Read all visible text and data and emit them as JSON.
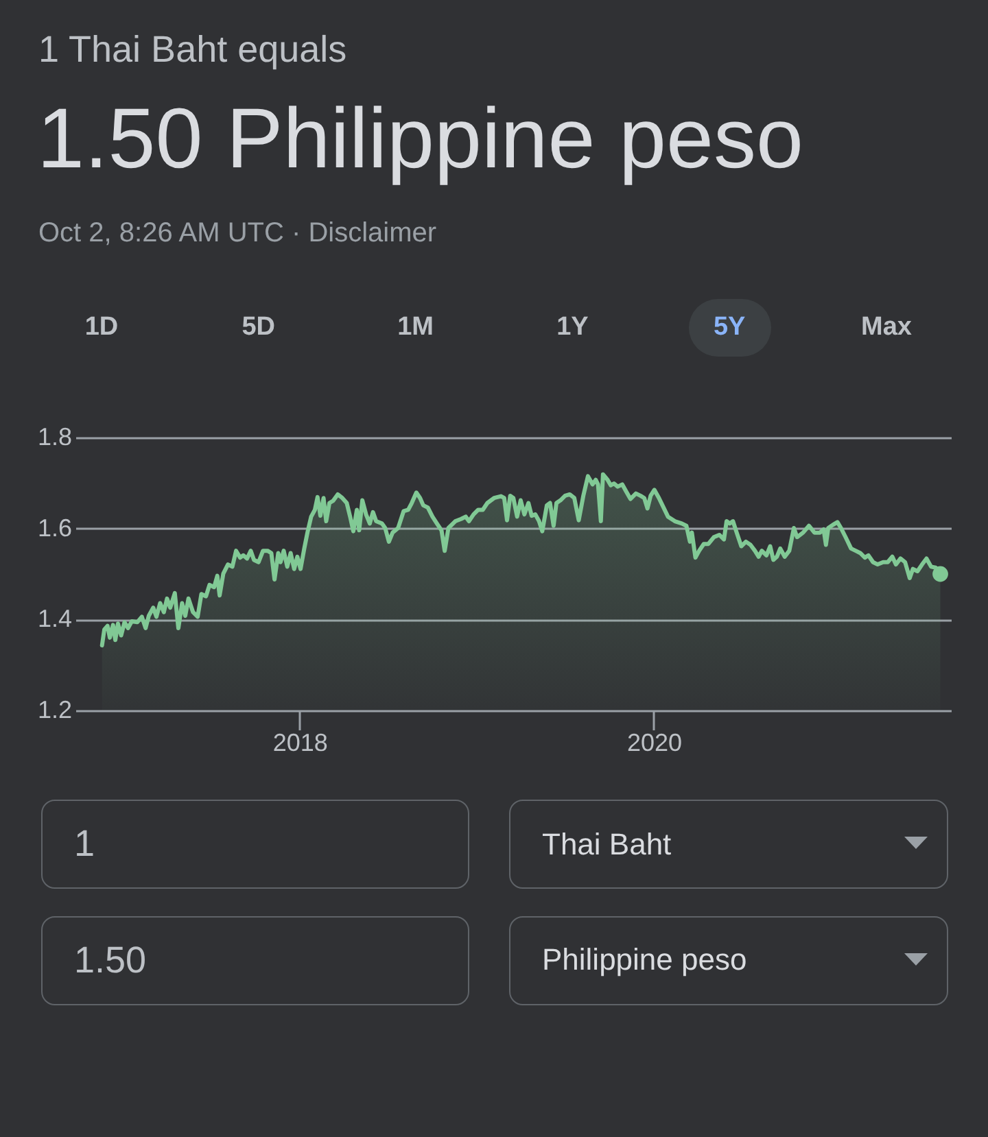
{
  "chart_data": {
    "type": "area",
    "title": "1.50 Philippine peso",
    "subtitle": "1 Thai Baht equals",
    "annotations": [
      "Oct 2, 8:26 AM UTC · Disclaimer",
      "1D",
      "5D",
      "1M",
      "1Y",
      "5Y",
      "Max",
      "1",
      "Thai Baht",
      "1.50",
      "Philippine peso"
    ],
    "x": [
      2016.884,
      2016.897,
      2016.915,
      2016.928,
      2016.946,
      2016.959,
      2016.974,
      2016.992,
      2017.011,
      2017.031,
      2017.052,
      2017.083,
      2017.109,
      2017.13,
      2017.148,
      2017.173,
      2017.191,
      2017.212,
      2017.233,
      2017.251,
      2017.269,
      2017.295,
      2017.315,
      2017.336,
      2017.354,
      2017.372,
      2017.398,
      2017.424,
      2017.445,
      2017.471,
      2017.491,
      2017.517,
      2017.535,
      2017.548,
      2017.569,
      2017.595,
      2017.62,
      2017.641,
      2017.664,
      2017.682,
      2017.703,
      2017.724,
      2017.742,
      2017.768,
      2017.793,
      2017.819,
      2017.84,
      2017.858,
      2017.879,
      2017.892,
      2017.91,
      2017.93,
      2017.949,
      2017.969,
      2017.987,
      2018.005,
      2018.026,
      2018.044,
      2018.065,
      2018.086,
      2018.101,
      2018.117,
      2018.135,
      2018.15,
      2018.168,
      2018.189,
      2018.215,
      2018.241,
      2018.266,
      2018.285,
      2018.303,
      2018.323,
      2018.336,
      2018.354,
      2018.375,
      2018.396,
      2018.414,
      2018.432,
      2018.465,
      2018.483,
      2018.504,
      2018.525,
      2018.556,
      2018.587,
      2018.613,
      2018.633,
      2018.659,
      2018.68,
      2018.698,
      2018.724,
      2018.75,
      2018.775,
      2018.801,
      2018.819,
      2018.84,
      2018.879,
      2018.912,
      2018.938,
      2018.956,
      2018.982,
      2019.008,
      2019.034,
      2019.06,
      2019.098,
      2019.137,
      2019.155,
      2019.171,
      2019.189,
      2019.207,
      2019.228,
      2019.248,
      2019.269,
      2019.292,
      2019.31,
      2019.331,
      2019.352,
      2019.37,
      2019.396,
      2019.414,
      2019.434,
      2019.45,
      2019.473,
      2019.499,
      2019.525,
      2019.551,
      2019.576,
      2019.602,
      2019.628,
      2019.654,
      2019.672,
      2019.685,
      2019.701,
      2019.713,
      2019.739,
      2019.757,
      2019.775,
      2019.796,
      2019.822,
      2019.843,
      2019.868,
      2019.899,
      2019.925,
      2019.946,
      2019.964,
      2019.982,
      2020.003,
      2020.029,
      2020.08,
      2020.119,
      2020.158,
      2020.184,
      2020.204,
      2020.215,
      2020.235,
      2020.256,
      2020.282,
      2020.308,
      2020.339,
      2020.37,
      2020.396,
      2020.411,
      2020.429,
      2020.447,
      2020.468,
      2020.494,
      2020.52,
      2020.546,
      2020.571,
      2020.592,
      2020.61,
      2020.636,
      2020.657,
      2020.675,
      2020.695,
      2020.714,
      2020.739,
      2020.765,
      2020.791,
      2020.809,
      2020.843,
      2020.876,
      2020.907,
      2020.938,
      2020.959,
      2020.972,
      2020.985,
      2021.011,
      2021.037,
      2021.057,
      2021.083,
      2021.114,
      2021.14,
      2021.166,
      2021.192,
      2021.212,
      2021.238,
      2021.264,
      2021.295,
      2021.321,
      2021.347,
      2021.367,
      2021.393,
      2021.419,
      2021.445,
      2021.463,
      2021.489,
      2021.515,
      2021.54,
      2021.566,
      2021.592,
      2021.618
    ],
    "series": [
      {
        "color": "#81c995",
        "values": [
          1.343,
          1.378,
          1.386,
          1.36,
          1.388,
          1.355,
          1.391,
          1.365,
          1.394,
          1.381,
          1.396,
          1.394,
          1.406,
          1.381,
          1.408,
          1.426,
          1.406,
          1.436,
          1.416,
          1.446,
          1.426,
          1.458,
          1.381,
          1.436,
          1.408,
          1.446,
          1.416,
          1.406,
          1.456,
          1.451,
          1.476,
          1.471,
          1.496,
          1.453,
          1.501,
          1.521,
          1.516,
          1.551,
          1.536,
          1.541,
          1.534,
          1.551,
          1.531,
          1.526,
          1.551,
          1.551,
          1.546,
          1.488,
          1.546,
          1.526,
          1.551,
          1.516,
          1.546,
          1.511,
          1.538,
          1.511,
          1.556,
          1.591,
          1.626,
          1.641,
          1.669,
          1.628,
          1.667,
          1.616,
          1.656,
          1.661,
          1.675,
          1.667,
          1.656,
          1.626,
          1.594,
          1.641,
          1.596,
          1.662,
          1.631,
          1.611,
          1.636,
          1.616,
          1.611,
          1.601,
          1.571,
          1.591,
          1.601,
          1.638,
          1.641,
          1.656,
          1.679,
          1.667,
          1.651,
          1.646,
          1.626,
          1.611,
          1.596,
          1.551,
          1.601,
          1.616,
          1.621,
          1.626,
          1.616,
          1.631,
          1.641,
          1.641,
          1.656,
          1.667,
          1.671,
          1.667,
          1.618,
          1.672,
          1.667,
          1.626,
          1.662,
          1.631,
          1.656,
          1.628,
          1.631,
          1.616,
          1.594,
          1.651,
          1.656,
          1.606,
          1.656,
          1.662,
          1.672,
          1.675,
          1.667,
          1.618,
          1.672,
          1.715,
          1.697,
          1.707,
          1.697,
          1.616,
          1.719,
          1.707,
          1.695,
          1.699,
          1.692,
          1.697,
          1.682,
          1.665,
          1.677,
          1.672,
          1.667,
          1.644,
          1.672,
          1.685,
          1.667,
          1.626,
          1.616,
          1.611,
          1.606,
          1.571,
          1.591,
          1.536,
          1.551,
          1.566,
          1.566,
          1.581,
          1.586,
          1.576,
          1.616,
          1.611,
          1.616,
          1.591,
          1.561,
          1.571,
          1.564,
          1.551,
          1.538,
          1.551,
          1.541,
          1.561,
          1.531,
          1.538,
          1.556,
          1.538,
          1.551,
          1.601,
          1.581,
          1.591,
          1.606,
          1.591,
          1.591,
          1.598,
          1.564,
          1.601,
          1.608,
          1.614,
          1.601,
          1.581,
          1.556,
          1.551,
          1.546,
          1.536,
          1.541,
          1.526,
          1.521,
          1.526,
          1.526,
          1.538,
          1.521,
          1.534,
          1.526,
          1.491,
          1.511,
          1.506,
          1.521,
          1.534,
          1.516,
          1.514,
          1.5
        ]
      },
      {
        "type": "scatter",
        "color": "#81c995",
        "x": [
          2021.618
        ],
        "values": [
          1.5
        ]
      }
    ],
    "xlim": [
      2016.734,
      2021.678
    ],
    "xticks": [
      2018,
      2020
    ],
    "ylim": [
      1.2,
      1.8
    ],
    "yticks": [
      1.2,
      1.4,
      1.6,
      1.8
    ],
    "grid": "y"
  }
}
